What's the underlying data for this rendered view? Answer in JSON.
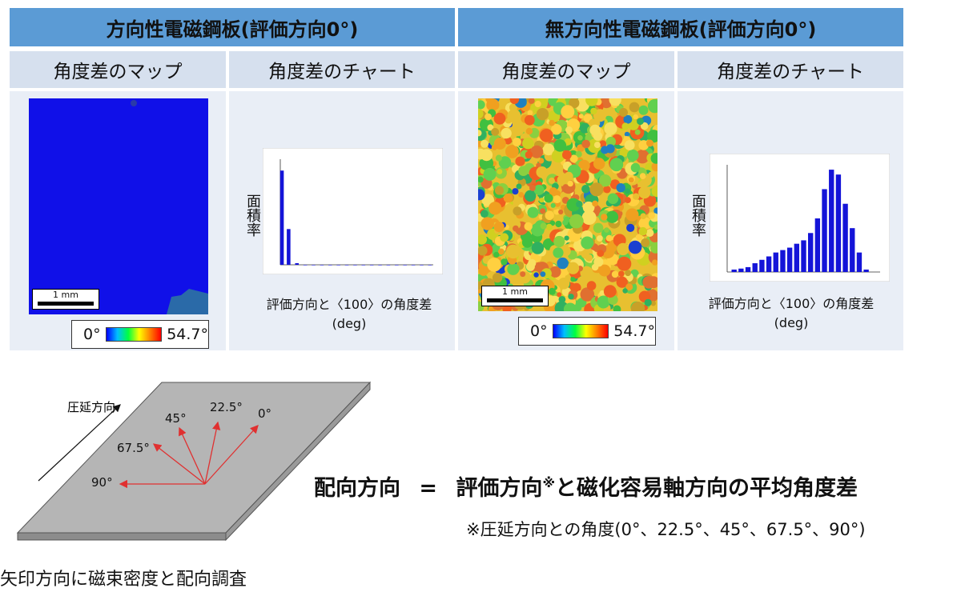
{
  "sections": [
    {
      "title": "方向性電磁鋼板(評価方向0°)",
      "map_header": "角度差のマップ",
      "chart_header": "角度差のチャート"
    },
    {
      "title": "無方向性電磁鋼板(評価方向0°)",
      "map_header": "角度差のマップ",
      "chart_header": "角度差のチャート"
    }
  ],
  "scale_label": "1 mm",
  "legend": {
    "min": "0°",
    "max": "54.7°"
  },
  "chart_ylabel": "面積率",
  "chart_xlabel_line1": "評価方向と〈100〉の角度差",
  "chart_xlabel_line2": "(deg)",
  "chart_data": [
    {
      "type": "bar",
      "x": [
        1,
        5,
        10,
        15,
        20,
        25,
        30,
        35,
        40,
        45,
        50,
        55,
        60,
        65,
        70,
        75,
        80,
        85,
        90
      ],
      "values": [
        0.58,
        0.22,
        0.01,
        0,
        0,
        0,
        0,
        0,
        0,
        0,
        0,
        0,
        0,
        0,
        0,
        0,
        0,
        0,
        0
      ],
      "ylim": [
        0,
        0.65
      ]
    },
    {
      "type": "bar",
      "x": [
        3,
        6,
        9,
        12,
        15,
        18,
        21,
        24,
        27,
        30,
        33,
        36,
        39,
        42,
        45,
        48,
        51,
        54,
        57,
        60
      ],
      "values": [
        0.005,
        0.007,
        0.01,
        0.018,
        0.025,
        0.032,
        0.04,
        0.045,
        0.05,
        0.058,
        0.065,
        0.08,
        0.11,
        0.17,
        0.21,
        0.2,
        0.14,
        0.09,
        0.04,
        0.005
      ],
      "ylim": [
        0,
        0.22
      ]
    }
  ],
  "diagram": {
    "rolling_direction": "圧延方向",
    "angles": [
      "0°",
      "22.5°",
      "45°",
      "67.5°",
      "90°"
    ],
    "accent_color": "#e03030"
  },
  "formula": {
    "lhs": "配向方向",
    "eq": "=",
    "rhs_a": "評価方向",
    "mark": "※",
    "rhs_b": "と磁化容易軸方向の平均角度差"
  },
  "note": "※圧延方向との角度(0°、22.5°、45°、67.5°、90°)",
  "caption": "矢印方向に磁束密度と配向調査"
}
